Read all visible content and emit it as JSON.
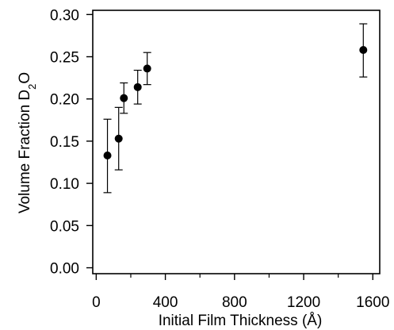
{
  "chart_data": {
    "type": "scatter",
    "xlabel": "Initial Film Thickness (Å)",
    "ylabel": {
      "text": "Volume Fraction D",
      "sub": "2",
      "tail": "O"
    },
    "xlim": [
      -20,
      1640
    ],
    "ylim": [
      -0.007,
      0.305
    ],
    "xticks": [
      {
        "value": 0,
        "label": "0"
      },
      {
        "value": 400,
        "label": "400"
      },
      {
        "value": 800,
        "label": "800"
      },
      {
        "value": 1200,
        "label": "1200"
      },
      {
        "value": 1600,
        "label": "1600"
      }
    ],
    "yticks": [
      {
        "value": 0.0,
        "label": "0.00"
      },
      {
        "value": 0.05,
        "label": "0.05"
      },
      {
        "value": 0.1,
        "label": "0.10"
      },
      {
        "value": 0.15,
        "label": "0.15"
      },
      {
        "value": 0.2,
        "label": "0.20"
      },
      {
        "value": 0.25,
        "label": "0.25"
      },
      {
        "value": 0.3,
        "label": "0.30"
      }
    ],
    "points": [
      {
        "x": 65,
        "y": 0.133,
        "err_low": 0.089,
        "err_high": 0.176
      },
      {
        "x": 130,
        "y": 0.153,
        "err_low": 0.116,
        "err_high": 0.19
      },
      {
        "x": 160,
        "y": 0.201,
        "err_low": 0.183,
        "err_high": 0.219
      },
      {
        "x": 240,
        "y": 0.214,
        "err_low": 0.194,
        "err_high": 0.234
      },
      {
        "x": 295,
        "y": 0.236,
        "err_low": 0.217,
        "err_high": 0.255
      },
      {
        "x": 1545,
        "y": 0.258,
        "err_low": 0.226,
        "err_high": 0.289
      }
    ],
    "grid": false,
    "marker_color": "#000000"
  }
}
